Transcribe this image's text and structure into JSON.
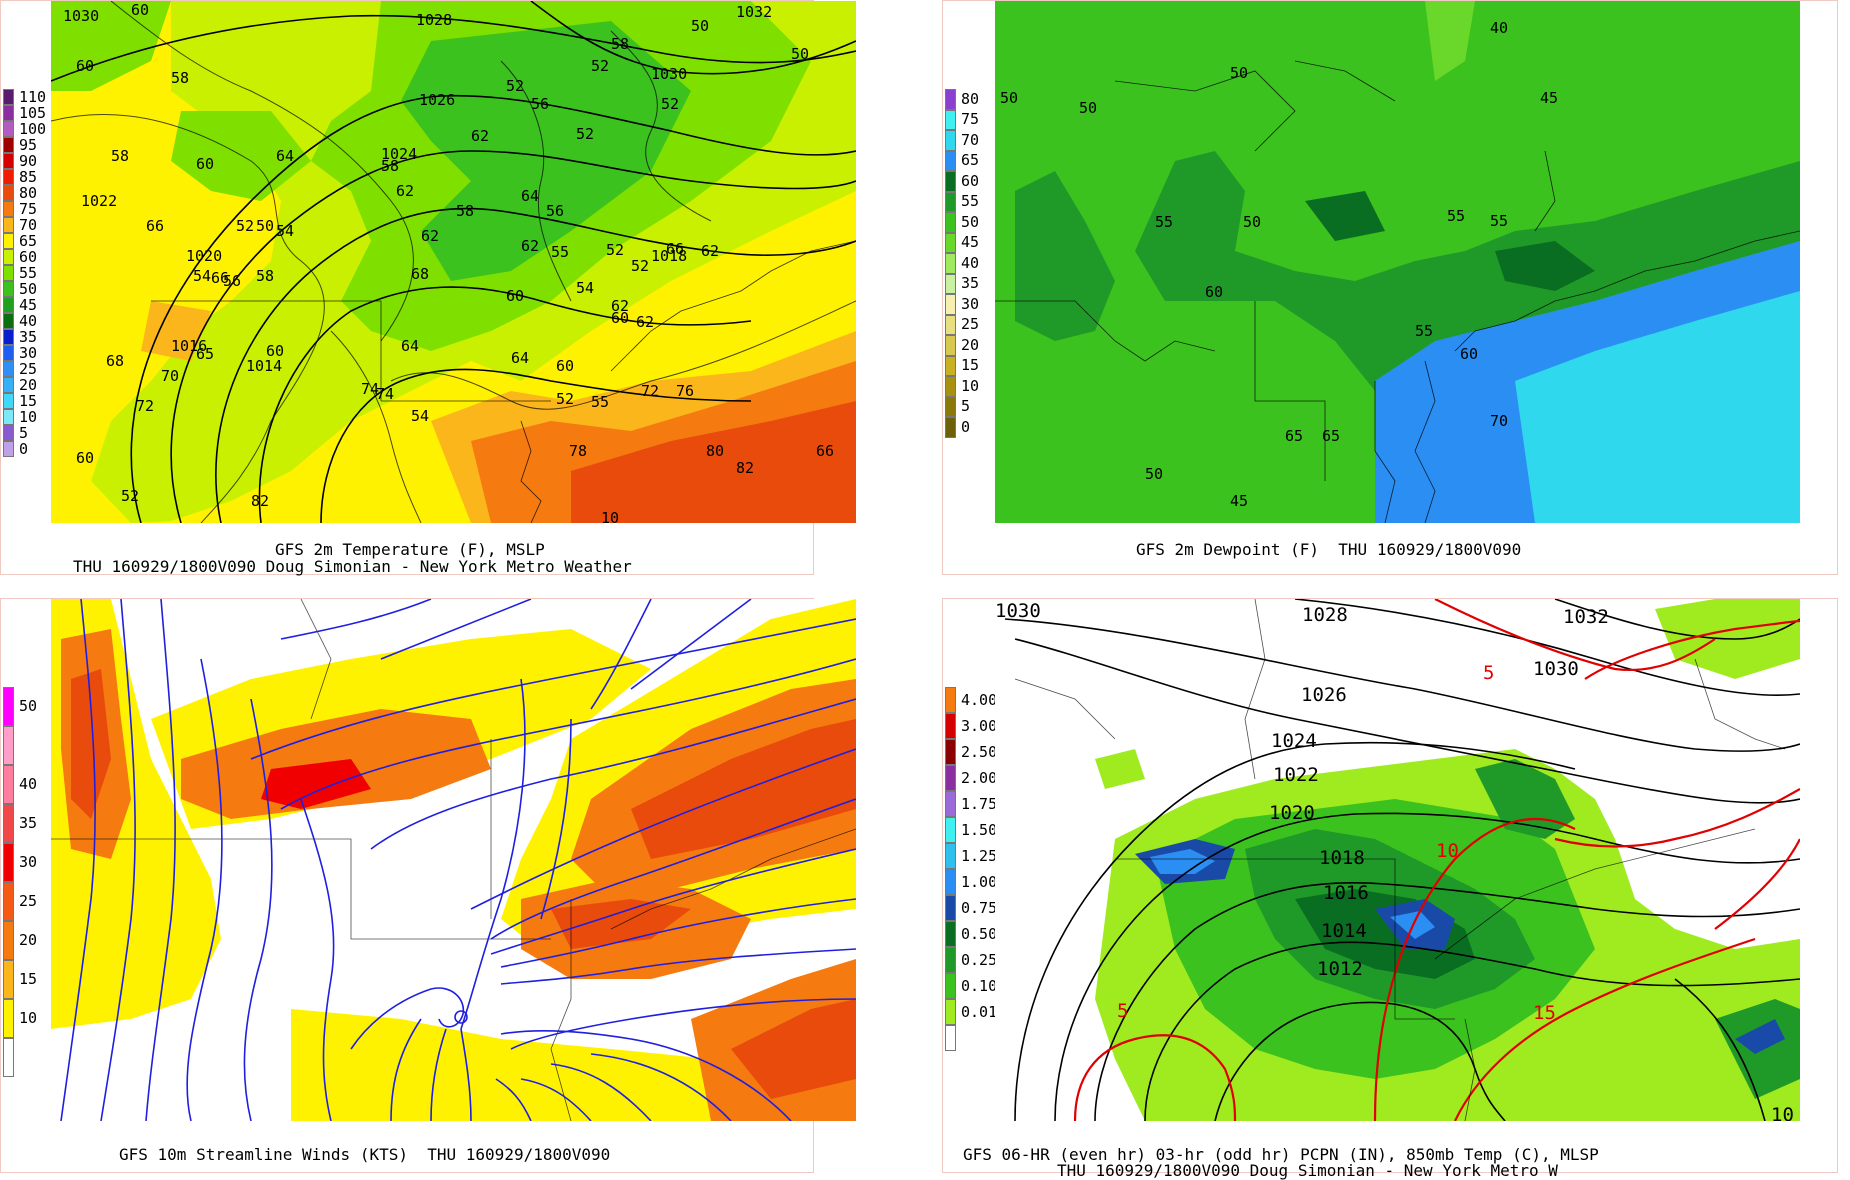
{
  "panels": {
    "temperature": {
      "caption_line1": "GFS 2m Temperature (F), MSLP",
      "caption_line2": "THU 160929/1800V090 Doug Simonian - New York Metro Weather",
      "legend": [
        {
          "label": "110",
          "color": "#5a1a6e"
        },
        {
          "label": "105",
          "color": "#8b2fa0"
        },
        {
          "label": "100",
          "color": "#b25cc2"
        },
        {
          "label": "95",
          "color": "#9e0000"
        },
        {
          "label": "90",
          "color": "#d40000"
        },
        {
          "label": "85",
          "color": "#f01c00"
        },
        {
          "label": "80",
          "color": "#e84b0c"
        },
        {
          "label": "75",
          "color": "#f57a10"
        },
        {
          "label": "70",
          "color": "#fbb61c"
        },
        {
          "label": "65",
          "color": "#fff200"
        },
        {
          "label": "60",
          "color": "#c9f000"
        },
        {
          "label": "55",
          "color": "#7fe000"
        },
        {
          "label": "50",
          "color": "#3cc21e"
        },
        {
          "label": "45",
          "color": "#1fa01e"
        },
        {
          "label": "40",
          "color": "#0b6e10"
        },
        {
          "label": "35",
          "color": "#0a1fcc"
        },
        {
          "label": "30",
          "color": "#1f5ff0"
        },
        {
          "label": "25",
          "color": "#2f8ff5"
        },
        {
          "label": "20",
          "color": "#38b0f8"
        },
        {
          "label": "15",
          "color": "#3fd8f8"
        },
        {
          "label": "10",
          "color": "#7fe8f8"
        },
        {
          "label": "5",
          "color": "#8a5ad0"
        },
        {
          "label": "0",
          "color": "#c0a0e8"
        }
      ],
      "labels": [
        "1030",
        "60",
        "1028",
        "50",
        "52",
        "1032",
        "58",
        "1030",
        "50",
        "52",
        "52",
        "56",
        "1026",
        "60",
        "58",
        "52",
        "62",
        "58",
        "60",
        "1024",
        "64",
        "58",
        "62",
        "64",
        "56",
        "58",
        "1022",
        "52",
        "50",
        "54",
        "62",
        "66",
        "66",
        "62",
        "1020",
        "54",
        "56",
        "58",
        "68",
        "66",
        "62",
        "55",
        "52",
        "1018",
        "52",
        "54",
        "60",
        "62",
        "60",
        "1016",
        "64",
        "62",
        "60",
        "60",
        "64",
        "1014",
        "65",
        "68",
        "70",
        "72",
        "55",
        "74",
        "74",
        "76",
        "54",
        "52",
        "72",
        "78",
        "80",
        "82",
        "66",
        "60",
        "52",
        "82",
        "10"
      ]
    },
    "dewpoint": {
      "caption_line1": "GFS 2m Dewpoint (F)  THU 160929/1800V090",
      "legend": [
        {
          "label": "80",
          "color": "#8a3fd0"
        },
        {
          "label": "75",
          "color": "#40f0f0"
        },
        {
          "label": "70",
          "color": "#30d8ee"
        },
        {
          "label": "65",
          "color": "#2a8ef2"
        },
        {
          "label": "60",
          "color": "#0a6e22"
        },
        {
          "label": "55",
          "color": "#1f9a28"
        },
        {
          "label": "50",
          "color": "#3cc21e"
        },
        {
          "label": "45",
          "color": "#6ad82a"
        },
        {
          "label": "40",
          "color": "#a0ea60"
        },
        {
          "label": "35",
          "color": "#c8f2a0"
        },
        {
          "label": "30",
          "color": "#f5f0b0"
        },
        {
          "label": "25",
          "color": "#e8e080"
        },
        {
          "label": "20",
          "color": "#d8c850"
        },
        {
          "label": "15",
          "color": "#c8b020"
        },
        {
          "label": "10",
          "color": "#a89010"
        },
        {
          "label": "5",
          "color": "#8a7808"
        },
        {
          "label": "0",
          "color": "#6e6006"
        }
      ],
      "labels": [
        "40",
        "50",
        "50",
        "50",
        "45",
        "55",
        "55",
        "50",
        "55",
        "60",
        "55",
        "60",
        "65",
        "65",
        "70",
        "50",
        "45"
      ]
    },
    "streamlines": {
      "caption_line1": "GFS 10m Streamline Winds (KTS)  THU 160929/1800V090",
      "legend": [
        {
          "label": "50",
          "color": "#ff00ff"
        },
        {
          "label": "",
          "color": "#ff9ec8"
        },
        {
          "label": "40",
          "color": "#ff7ea0"
        },
        {
          "label": "35",
          "color": "#f04848"
        },
        {
          "label": "30",
          "color": "#f00000"
        },
        {
          "label": "25",
          "color": "#f55a14"
        },
        {
          "label": "20",
          "color": "#f57a10"
        },
        {
          "label": "15",
          "color": "#fbb61c"
        },
        {
          "label": "10",
          "color": "#fff200"
        },
        {
          "label": "",
          "color": "#ffffff"
        }
      ]
    },
    "precip": {
      "caption_line1": "GFS 06-HR (even hr) 03-hr (odd hr) PCPN (IN), 850mb Temp (C), MLSP",
      "caption_line2": "THU 160929/1800V090 Doug Simonian - New York Metro W",
      "legend": [
        {
          "label": "4.00",
          "color": "#f57a10"
        },
        {
          "label": "3.00",
          "color": "#d40000"
        },
        {
          "label": "2.50",
          "color": "#8b0000"
        },
        {
          "label": "2.00",
          "color": "#8b2fa0"
        },
        {
          "label": "1.75",
          "color": "#9a6ad8"
        },
        {
          "label": "1.50",
          "color": "#40f0f0"
        },
        {
          "label": "1.25",
          "color": "#30c0ee"
        },
        {
          "label": "1.00",
          "color": "#2a8ef2"
        },
        {
          "label": "0.75",
          "color": "#1a4aa8"
        },
        {
          "label": "0.50",
          "color": "#0a6e22"
        },
        {
          "label": "0.25",
          "color": "#1f9a28"
        },
        {
          "label": "0.10",
          "color": "#3cc21e"
        },
        {
          "label": "0.01",
          "color": "#a0ea20"
        },
        {
          "label": "",
          "color": "#ffffff"
        }
      ],
      "isobar_labels": [
        "1030",
        "1028",
        "1032",
        "1030",
        "1026",
        "1024",
        "1022",
        "1020",
        "1018",
        "1016",
        "1014",
        "1012",
        "10"
      ],
      "temp_labels": [
        "5",
        "10",
        "5",
        "15"
      ]
    }
  },
  "colors": {
    "panel_border": "#f1c9c4",
    "streamline": "#1f1fe0",
    "isotherm": "#e00000"
  }
}
